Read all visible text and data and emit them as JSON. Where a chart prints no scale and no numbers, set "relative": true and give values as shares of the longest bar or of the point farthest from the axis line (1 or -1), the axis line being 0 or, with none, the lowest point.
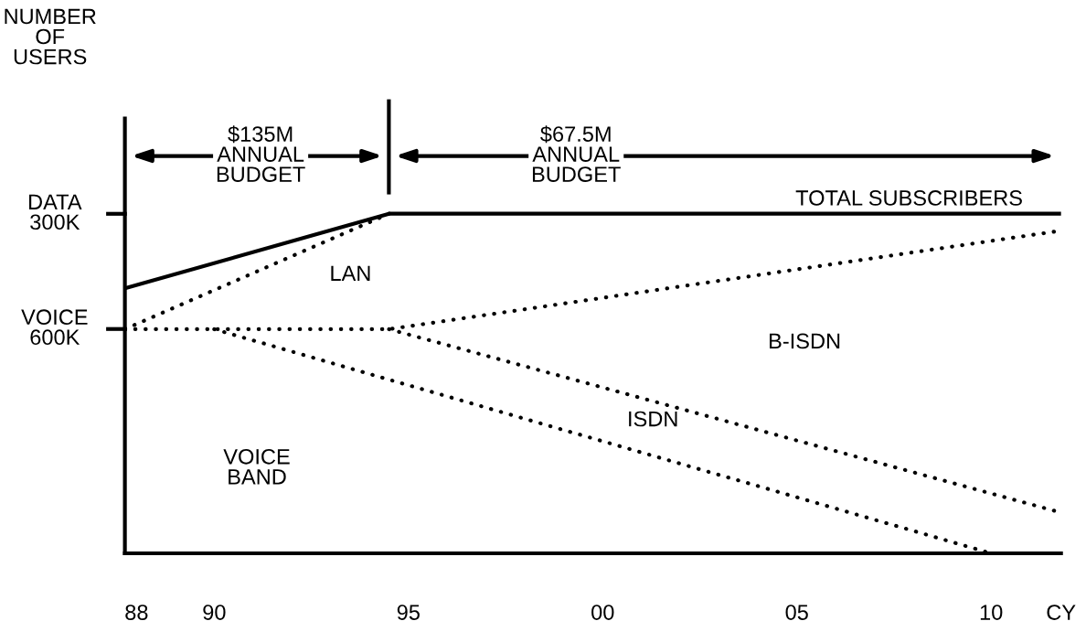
{
  "chart_data": {
    "type": "line",
    "xlabel": "CY",
    "xlim": [
      1987.7,
      2011.8
    ],
    "xticks": [
      {
        "value": 1988,
        "label": "88"
      },
      {
        "value": 1990,
        "label": "90"
      },
      {
        "value": 1995,
        "label": "95"
      },
      {
        "value": 2000,
        "label": "00"
      },
      {
        "value": 2005,
        "label": "05"
      },
      {
        "value": 2010,
        "label": "10"
      }
    ],
    "relative": true,
    "series": [
      {
        "name": "TOTAL SUBSCRIBERS",
        "color": "#000000",
        "line_style": "solid",
        "x": [
          1987.7,
          1994.5,
          2011.8
        ],
        "values": [
          0.78,
          1,
          1
        ]
      },
      {
        "color": "#000000",
        "line_style": "dotted",
        "x": [
          1987.7,
          1994.5
        ],
        "values": [
          0.66,
          1
        ]
      },
      {
        "color": "#000000",
        "line_style": "dotted",
        "x": [
          1987.7,
          1994.5,
          2011.8
        ],
        "values": [
          0.66,
          0.66,
          0.95
        ]
      },
      {
        "color": "#000000",
        "line_style": "dotted",
        "x": [
          1990,
          2010
        ],
        "values": [
          0.66,
          0
        ]
      },
      {
        "color": "#000000",
        "line_style": "dotted",
        "x": [
          1994.5,
          2011.8
        ],
        "values": [
          0.66,
          0.12
        ]
      }
    ],
    "annotations": [
      "$135M\nANNUAL\nBUDGET",
      "$67.5M\nANNUAL\nBUDGET",
      "LAN",
      "B-ISDN",
      "ISDN",
      "VOICE\nBAND",
      "NUMBER\nOF\nUSERS",
      "DATA\n300K",
      "VOICE\n600K"
    ],
    "grid": false,
    "legend": false,
    "marker": "none"
  }
}
